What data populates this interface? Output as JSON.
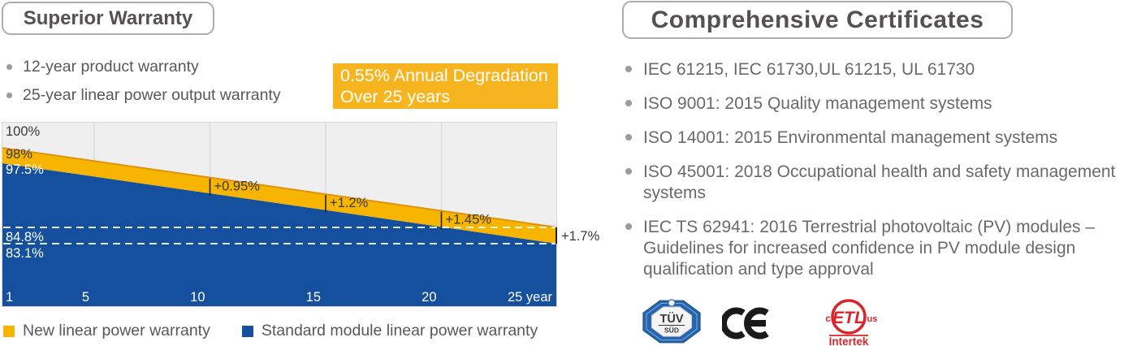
{
  "left": {
    "title": "Superior Warranty",
    "bullets": [
      "12-year product warranty",
      "25-year linear power output warranty"
    ],
    "badge": {
      "line1": "0.55% Annual Degradation",
      "line2": "Over 25 years",
      "bg": "#F6B51E"
    },
    "legend": [
      {
        "label": "New linear power warranty",
        "color": "#F7B500"
      },
      {
        "label": "Standard module linear power warranty",
        "color": "#14509E"
      }
    ]
  },
  "chart_data": {
    "type": "area",
    "title": "Linear power warranty degradation over 25 years",
    "x_range": [
      1,
      25
    ],
    "ylim": [
      71.6,
      102.3
    ],
    "x_gridlines": [
      5,
      10,
      15,
      20
    ],
    "x_ticks": [
      {
        "x": 1,
        "label": "1"
      },
      {
        "x": 5,
        "label": "5"
      },
      {
        "x": 10,
        "label": "10"
      },
      {
        "x": 15,
        "label": "15"
      },
      {
        "x": 20,
        "label": "20"
      },
      {
        "x": 25,
        "label": "25 year"
      }
    ],
    "y_axis_labels": [
      {
        "value": 100,
        "label": "100%",
        "style": "dark"
      },
      {
        "value": 98,
        "label": "98%",
        "style": "dark"
      },
      {
        "value": 97.5,
        "label": "97.5%",
        "style": "light"
      },
      {
        "value": 84.8,
        "label": "84.8%",
        "style": "light"
      },
      {
        "value": 83.1,
        "label": "83.1%",
        "style": "light"
      }
    ],
    "series": [
      {
        "name": "New linear power warranty",
        "color": "#F7B500",
        "edge_color": "#E2920A",
        "annual_degradation_pct": 0.55,
        "points": [
          {
            "year": 1,
            "value": 98
          },
          {
            "year": 25,
            "value": 84.8
          }
        ]
      },
      {
        "name": "Standard module linear power warranty",
        "color": "#14509E",
        "points": [
          {
            "year": 1,
            "value": 97.5
          },
          {
            "year": 25,
            "value": 83.1
          }
        ]
      }
    ],
    "dashed_reference_lines": [
      84.8,
      83.1
    ],
    "annotations": [
      {
        "year": 10,
        "label": "+0.95%"
      },
      {
        "year": 15,
        "label": "+1.2%"
      },
      {
        "year": 20,
        "label": "+1.45%"
      },
      {
        "year": 25,
        "label": "+1.7%",
        "outside": true
      }
    ],
    "plot_bg": "#EFEFEF",
    "grid": true,
    "legend_position": "bottom"
  },
  "right": {
    "title": "Comprehensive Certificates",
    "bullets": [
      "IEC 61215, IEC 61730,UL 61215, UL 61730",
      "ISO 9001: 2015 Quality management systems",
      "ISO 14001: 2015 Environmental management systems",
      "ISO 45001: 2018 Occupational health and safety management systems",
      "IEC TS 62941: 2016 Terrestrial photovoltaic (PV) modules – Guidelines for increased confidence in PV module design qualification and type approval"
    ],
    "logos": [
      {
        "name": "tuv-sud",
        "lines": [
          "TÜV",
          "SÜD"
        ]
      },
      {
        "name": "ce",
        "text": "CE"
      },
      {
        "name": "etl-intertek",
        "texts": {
          "c": "c",
          "etl": "ETL",
          "us": "us",
          "brand": "Intertek"
        }
      }
    ]
  },
  "colors": {
    "accent_yellow": "#F7B500",
    "accent_blue": "#14509E",
    "badge_bg": "#F6B51E",
    "title_text": "#555152",
    "body_text": "#6A6A6A",
    "plot_bg": "#EFEFEF",
    "tuv_blue": "#2565AE",
    "ce_black": "#1A1A1A",
    "etl_red": "#D8262C"
  }
}
